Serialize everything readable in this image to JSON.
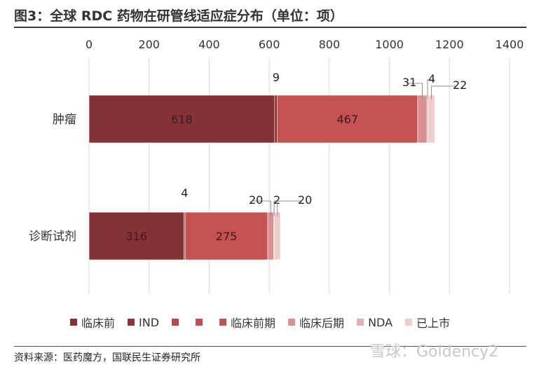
{
  "title": "图3：全球 RDC 药物在研管线适应症分布（单位：项）",
  "source": "资料来源：医药魔方，国联民生证券研究所",
  "watermark": "雪球：Goldency2",
  "chart_data": {
    "type": "bar",
    "orientation": "horizontal",
    "stacked": true,
    "categories": [
      "肿瘤",
      "诊断试剂"
    ],
    "xlim": [
      0,
      1400
    ],
    "x_ticks": [
      0,
      200,
      400,
      600,
      800,
      1000,
      1200,
      1400
    ],
    "x_tick_labels": [
      "0",
      "200",
      "400",
      "600",
      "800",
      "1000",
      "1200",
      "1400"
    ],
    "grid": "vertical",
    "legend_position": "bottom",
    "series": [
      {
        "name": "临床前",
        "color": "#853237",
        "values": [
          618,
          316
        ]
      },
      {
        "name": "IND",
        "color": "#8b3538",
        "values": [
          9,
          4
        ]
      },
      {
        "name": "",
        "color": "#b84748",
        "values": [
          0,
          0
        ]
      },
      {
        "name": "",
        "color": "#c34c4d",
        "values": [
          0,
          0
        ]
      },
      {
        "name": "临床前期",
        "color": "#c55252",
        "values": [
          467,
          275
        ]
      },
      {
        "name": "临床后期",
        "color": "#d89293",
        "values": [
          31,
          20
        ]
      },
      {
        "name": "NDA",
        "color": "#e4b1b2",
        "values": [
          4,
          2
        ]
      },
      {
        "name": "已上市",
        "color": "#f0cccd",
        "values": [
          22,
          20
        ]
      }
    ],
    "labels": [
      {
        "category": 0,
        "series": 0,
        "text": "618",
        "mode": "inside"
      },
      {
        "category": 0,
        "series": 1,
        "text": "9",
        "mode": "above",
        "dx": 0,
        "dy": -20
      },
      {
        "category": 0,
        "series": 4,
        "text": "467",
        "mode": "inside"
      },
      {
        "category": 0,
        "series": 5,
        "text": "31",
        "mode": "callout",
        "tx": 574,
        "ty": 123
      },
      {
        "category": 0,
        "series": 6,
        "text": "4",
        "mode": "callout",
        "tx": 611,
        "ty": 118
      },
      {
        "category": 0,
        "series": 7,
        "text": "22",
        "mode": "callout",
        "tx": 646,
        "ty": 127
      },
      {
        "category": 1,
        "series": 0,
        "text": "316",
        "mode": "inside"
      },
      {
        "category": 1,
        "series": 1,
        "text": "4",
        "mode": "above",
        "dx": 0,
        "dy": -22
      },
      {
        "category": 1,
        "series": 4,
        "text": "275",
        "mode": "inside"
      },
      {
        "category": 1,
        "series": 5,
        "text": "20",
        "mode": "callout",
        "tx": 355,
        "ty": 291
      },
      {
        "category": 1,
        "series": 6,
        "text": "2",
        "mode": "callout",
        "tx": 390,
        "ty": 291
      },
      {
        "category": 1,
        "series": 7,
        "text": "20",
        "mode": "callout",
        "tx": 425,
        "ty": 291
      }
    ]
  }
}
